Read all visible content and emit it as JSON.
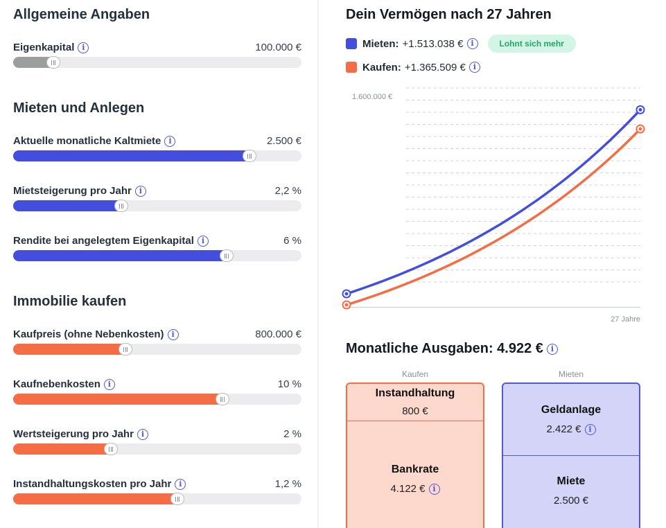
{
  "general": {
    "title": "Allgemeine Angaben",
    "equity": {
      "label": "Eigenkapital",
      "value": "100.000 €",
      "fraction": 0.14,
      "color": "gray"
    }
  },
  "rent": {
    "title": "Mieten und Anlegen",
    "items": [
      {
        "label": "Aktuelle monatliche Kaltmiete",
        "value": "2.500 €",
        "fraction": 0.82,
        "color": "blue"
      },
      {
        "label": "Mietsteigerung pro Jahr",
        "value": "2,2 %",
        "fraction": 0.375,
        "color": "blue"
      },
      {
        "label": "Rendite bei angelegtem Eigenkapital",
        "value": "6 %",
        "fraction": 0.74,
        "color": "blue"
      }
    ]
  },
  "buy": {
    "title": "Immobilie kaufen",
    "items": [
      {
        "label": "Kaufpreis (ohne Nebenkosten)",
        "value": "800.000 €",
        "fraction": 0.39,
        "color": "orange"
      },
      {
        "label": "Kaufnebenkosten",
        "value": "10 %",
        "fraction": 0.725,
        "color": "orange"
      },
      {
        "label": "Wertsteigerung pro Jahr",
        "value": "2 %",
        "fraction": 0.34,
        "color": "orange"
      },
      {
        "label": "Instandhaltungskosten pro Jahr",
        "value": "1,2 %",
        "fraction": 0.57,
        "color": "orange"
      }
    ]
  },
  "wealth": {
    "title": "Dein Vermögen nach 27 Jahren",
    "legend": [
      {
        "name": "Mieten:",
        "value": "+1.513.038 €",
        "color": "#434ede",
        "badge": "Lohnt sich mehr"
      },
      {
        "name": "Kaufen:",
        "value": "+1.365.509 €",
        "color": "#f46d45"
      }
    ]
  },
  "chart_data": {
    "type": "line",
    "y_tick_label": "1.600.000 €",
    "x_end_label": "27 Jahre",
    "x": [
      0,
      27
    ],
    "ylim": [
      0,
      1600000
    ],
    "series": [
      {
        "name": "Mieten",
        "start": 100000,
        "end": 1513038,
        "color": "#434ede"
      },
      {
        "name": "Kaufen",
        "start": 0,
        "end": 1365509,
        "color": "#f46d45"
      }
    ]
  },
  "expenses": {
    "title": "Monatliche Ausgaben: 4.922 €",
    "buy_label": "Kaufen",
    "rent_label": "Mieten",
    "buy_upper": {
      "title": "Instandhaltung",
      "value": "800 €"
    },
    "buy_lower": {
      "title": "Bankrate",
      "value": "4.122 €"
    },
    "rent_upper": {
      "title": "Geldanlage",
      "value": "2.422 €"
    },
    "rent_lower": {
      "title": "Miete",
      "value": "2.500 €"
    }
  }
}
